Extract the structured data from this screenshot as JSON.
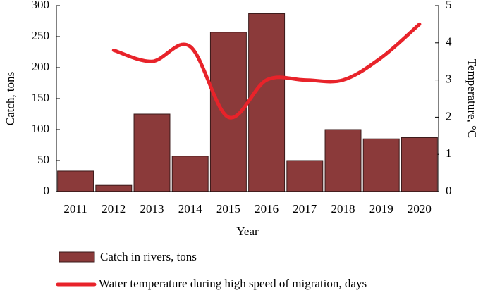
{
  "chart_data": {
    "type": "bar_line",
    "x_label": "Year",
    "y_label": "Catch, tons",
    "y2_label": "Temperature, °C",
    "categories": [
      "2011",
      "2012",
      "2013",
      "2014",
      "2015",
      "2016",
      "2017",
      "2018",
      "2019",
      "2020"
    ],
    "series": [
      {
        "name": "Catch in rivers, tons",
        "type": "bar",
        "color": "#8b3a3a",
        "values": [
          33,
          10,
          125,
          57,
          257,
          287,
          50,
          100,
          85,
          87
        ]
      },
      {
        "name": "Water temperature during high speed of migration, days",
        "type": "line",
        "axis": "y2",
        "color": "#e8232a",
        "values": [
          null,
          3.8,
          3.5,
          3.9,
          2.0,
          3.0,
          3.0,
          3.0,
          3.6,
          4.5
        ]
      }
    ],
    "ylim": [
      0,
      300
    ],
    "yticks": [
      0,
      50,
      100,
      150,
      200,
      250,
      300
    ],
    "y2lim": [
      0,
      5
    ],
    "y2ticks": [
      0,
      1,
      2,
      3,
      4,
      5
    ],
    "grid": false
  }
}
